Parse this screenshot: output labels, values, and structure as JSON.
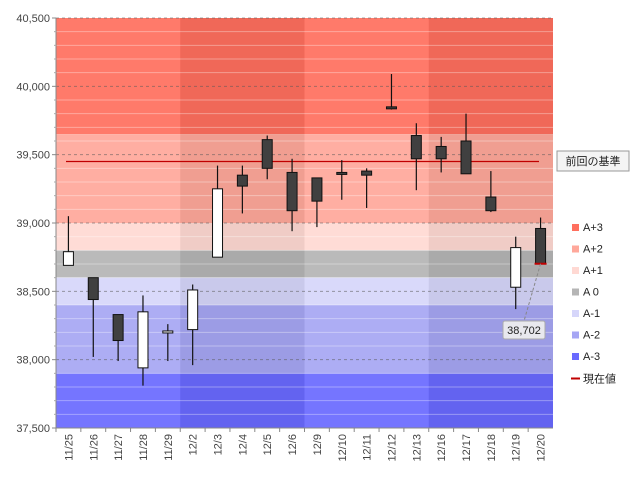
{
  "chart_data": {
    "type": "candlestick",
    "title": "",
    "xlabel": "",
    "ylabel": "",
    "ylim": [
      37500,
      40500
    ],
    "y_ticks": [
      "37,500",
      "38,000",
      "38,500",
      "39,000",
      "39,500",
      "40,000",
      "40,500"
    ],
    "y_tick_values": [
      37500,
      38000,
      38500,
      39000,
      39500,
      40000,
      40500
    ],
    "categories": [
      "11/25",
      "11/26",
      "11/27",
      "11/28",
      "11/29",
      "12/2",
      "12/3",
      "12/4",
      "12/5",
      "12/6",
      "12/9",
      "12/10",
      "12/11",
      "12/12",
      "12/13",
      "12/16",
      "12/17",
      "12/18",
      "12/19",
      "12/20"
    ],
    "candles": [
      {
        "open": 38690,
        "high": 39050,
        "low": 38690,
        "close": 38790
      },
      {
        "open": 38600,
        "high": 38600,
        "low": 38020,
        "close": 38440
      },
      {
        "open": 38330,
        "high": 38330,
        "low": 37990,
        "close": 38140
      },
      {
        "open": 37940,
        "high": 38470,
        "low": 37810,
        "close": 38350
      },
      {
        "open": 38200,
        "high": 38260,
        "low": 37990,
        "close": 38210
      },
      {
        "open": 38220,
        "high": 38550,
        "low": 37960,
        "close": 38510
      },
      {
        "open": 38750,
        "high": 39420,
        "low": 38750,
        "close": 39250
      },
      {
        "open": 39350,
        "high": 39420,
        "low": 39070,
        "close": 39270
      },
      {
        "open": 39610,
        "high": 39640,
        "low": 39320,
        "close": 39400
      },
      {
        "open": 39370,
        "high": 39470,
        "low": 38940,
        "close": 39090
      },
      {
        "open": 39330,
        "high": 39330,
        "low": 38970,
        "close": 39160
      },
      {
        "open": 39370,
        "high": 39460,
        "low": 39170,
        "close": 39360
      },
      {
        "open": 39380,
        "high": 39400,
        "low": 39110,
        "close": 39350
      },
      {
        "open": 39850,
        "high": 40090,
        "low": 39830,
        "close": 39840
      },
      {
        "open": 39640,
        "high": 39730,
        "low": 39240,
        "close": 39470
      },
      {
        "open": 39560,
        "high": 39630,
        "low": 39370,
        "close": 39470
      },
      {
        "open": 39600,
        "high": 39800,
        "low": 39360,
        "close": 39360
      },
      {
        "open": 39190,
        "high": 39380,
        "low": 39080,
        "close": 39090
      },
      {
        "open": 38530,
        "high": 38900,
        "low": 38370,
        "close": 38820
      },
      {
        "open": 38960,
        "high": 39040,
        "low": 38700,
        "close": 38702
      }
    ],
    "bands": [
      {
        "name": "A+3",
        "from": 39650,
        "to": 40500,
        "color": "#ff6f5e"
      },
      {
        "name": "A+2",
        "from": 39000,
        "to": 39650,
        "color": "#ffa89b"
      },
      {
        "name": "A+1",
        "from": 38800,
        "to": 39000,
        "color": "#ffd9d3"
      },
      {
        "name": "A 0",
        "from": 38600,
        "to": 38800,
        "color": "#b5b5b5"
      },
      {
        "name": "A-1",
        "from": 38400,
        "to": 38600,
        "color": "#d6d6fa"
      },
      {
        "name": "A-2",
        "from": 37900,
        "to": 38400,
        "color": "#a6a6f4"
      },
      {
        "name": "A-3",
        "from": 37500,
        "to": 37900,
        "color": "#6a6aff"
      }
    ],
    "reference_line": {
      "label": "前回の基準",
      "value": 39450,
      "color": "#c00000"
    },
    "current_value_marker": {
      "label": "現在値",
      "value": 38702,
      "color": "#c00000"
    },
    "current_value_callout": {
      "text": "38,702",
      "category": "12/20"
    },
    "legend_position": "right",
    "grid": true,
    "colors": {
      "up_fill": "#ffffff",
      "down_fill": "#404040",
      "outline": "#111111"
    }
  }
}
